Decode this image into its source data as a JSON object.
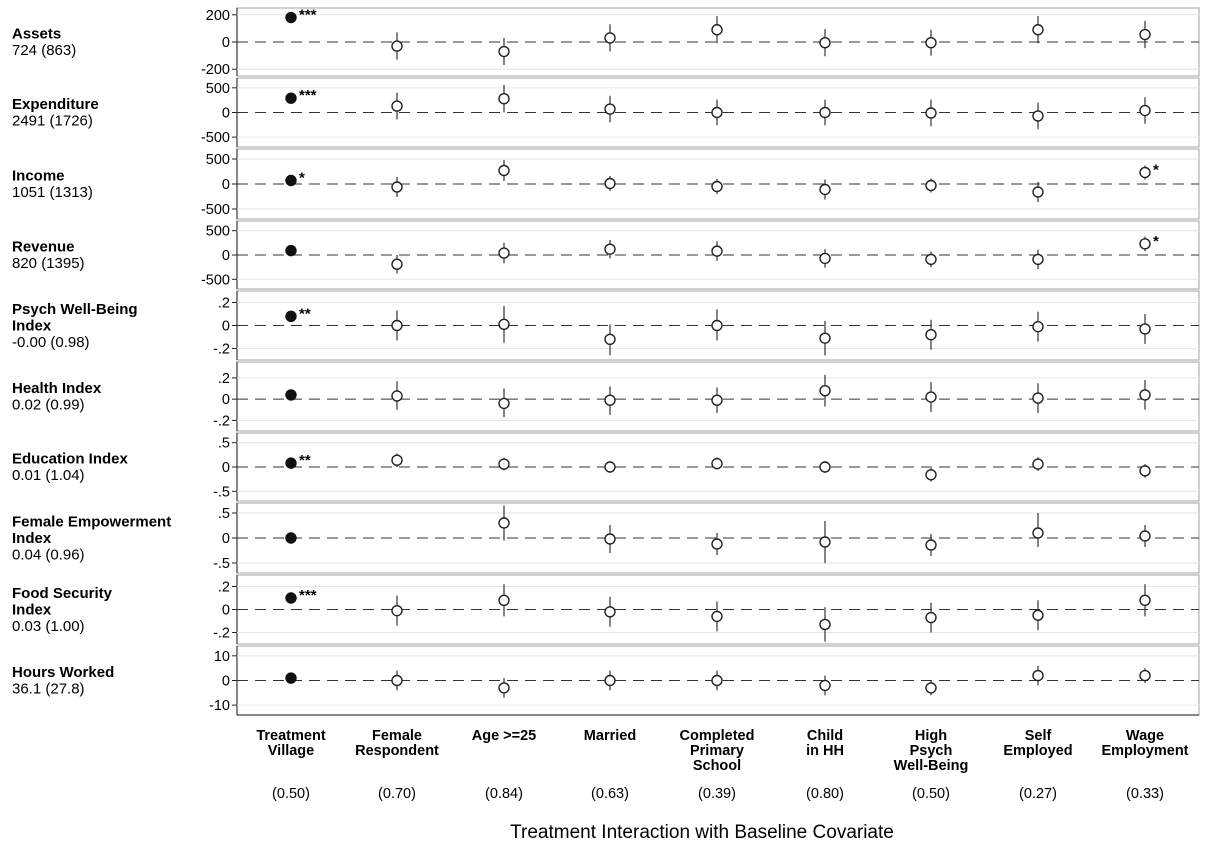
{
  "chart_data": {
    "type": "scatter",
    "xlabel": "Treatment Interaction with Baseline Covariate",
    "columns": [
      {
        "label": [
          "Treatment",
          "Village"
        ],
        "mean": "(0.50)"
      },
      {
        "label": [
          "Female",
          "Respondent"
        ],
        "mean": "(0.70)"
      },
      {
        "label": [
          "Age >=25"
        ],
        "mean": "(0.84)"
      },
      {
        "label": [
          "Married"
        ],
        "mean": "(0.63)"
      },
      {
        "label": [
          "Completed",
          "Primary",
          "School"
        ],
        "mean": "(0.39)"
      },
      {
        "label": [
          "Child",
          "in HH"
        ],
        "mean": "(0.80)"
      },
      {
        "label": [
          "High",
          "Psych",
          "Well-Being"
        ],
        "mean": "(0.50)"
      },
      {
        "label": [
          "Self",
          "Employed"
        ],
        "mean": "(0.27)"
      },
      {
        "label": [
          "Wage",
          "Employment"
        ],
        "mean": "(0.33)"
      }
    ],
    "panels": [
      {
        "name": [
          "Assets"
        ],
        "stat": "724 (863)",
        "ylim": [
          -250,
          250
        ],
        "ticks": [
          200,
          0,
          -200
        ],
        "tick_labels": [
          "200",
          "0",
          "-200"
        ],
        "points": [
          {
            "value": 180,
            "lo": 180,
            "hi": 180,
            "sig": "***"
          },
          {
            "value": -30,
            "lo": -130,
            "hi": 70,
            "sig": ""
          },
          {
            "value": -70,
            "lo": -170,
            "hi": 30,
            "sig": ""
          },
          {
            "value": 30,
            "lo": -70,
            "hi": 130,
            "sig": ""
          },
          {
            "value": 90,
            "lo": -10,
            "hi": 190,
            "sig": ""
          },
          {
            "value": -5,
            "lo": -105,
            "hi": 95,
            "sig": ""
          },
          {
            "value": -5,
            "lo": -100,
            "hi": 90,
            "sig": ""
          },
          {
            "value": 90,
            "lo": -10,
            "hi": 190,
            "sig": ""
          },
          {
            "value": 55,
            "lo": -45,
            "hi": 155,
            "sig": ""
          }
        ]
      },
      {
        "name": [
          "Expenditure"
        ],
        "stat": "2491 (1726)",
        "ylim": [
          -700,
          700
        ],
        "ticks": [
          500,
          0,
          -500
        ],
        "tick_labels": [
          "500",
          "0",
          "-500"
        ],
        "points": [
          {
            "value": 290,
            "lo": 290,
            "hi": 290,
            "sig": "***"
          },
          {
            "value": 130,
            "lo": -140,
            "hi": 400,
            "sig": ""
          },
          {
            "value": 280,
            "lo": 0,
            "hi": 560,
            "sig": ""
          },
          {
            "value": 70,
            "lo": -200,
            "hi": 340,
            "sig": ""
          },
          {
            "value": 0,
            "lo": -260,
            "hi": 260,
            "sig": ""
          },
          {
            "value": 0,
            "lo": -260,
            "hi": 260,
            "sig": ""
          },
          {
            "value": -10,
            "lo": -280,
            "hi": 260,
            "sig": ""
          },
          {
            "value": -70,
            "lo": -340,
            "hi": 200,
            "sig": ""
          },
          {
            "value": 40,
            "lo": -230,
            "hi": 310,
            "sig": ""
          }
        ]
      },
      {
        "name": [
          "Income"
        ],
        "stat": "1051 (1313)",
        "ylim": [
          -700,
          700
        ],
        "ticks": [
          500,
          0,
          -500
        ],
        "tick_labels": [
          "500",
          "0",
          "-500"
        ],
        "points": [
          {
            "value": 70,
            "lo": 70,
            "hi": 70,
            "sig": "*"
          },
          {
            "value": -60,
            "lo": -260,
            "hi": 140,
            "sig": ""
          },
          {
            "value": 270,
            "lo": 60,
            "hi": 480,
            "sig": ""
          },
          {
            "value": 10,
            "lo": -140,
            "hi": 160,
            "sig": ""
          },
          {
            "value": -50,
            "lo": -200,
            "hi": 100,
            "sig": ""
          },
          {
            "value": -110,
            "lo": -310,
            "hi": 90,
            "sig": ""
          },
          {
            "value": -30,
            "lo": -170,
            "hi": 110,
            "sig": ""
          },
          {
            "value": -160,
            "lo": -360,
            "hi": 40,
            "sig": ""
          },
          {
            "value": 230,
            "lo": 90,
            "hi": 370,
            "sig": "*"
          }
        ]
      },
      {
        "name": [
          "Revenue"
        ],
        "stat": "820 (1395)",
        "ylim": [
          -700,
          700
        ],
        "ticks": [
          500,
          0,
          -500
        ],
        "tick_labels": [
          "500",
          "0",
          "-500"
        ],
        "points": [
          {
            "value": 90,
            "lo": 90,
            "hi": 90,
            "sig": ""
          },
          {
            "value": -190,
            "lo": -380,
            "hi": 0,
            "sig": ""
          },
          {
            "value": 40,
            "lo": -170,
            "hi": 250,
            "sig": ""
          },
          {
            "value": 120,
            "lo": -70,
            "hi": 310,
            "sig": ""
          },
          {
            "value": 80,
            "lo": -120,
            "hi": 280,
            "sig": ""
          },
          {
            "value": -70,
            "lo": -260,
            "hi": 120,
            "sig": ""
          },
          {
            "value": -90,
            "lo": -250,
            "hi": 70,
            "sig": ""
          },
          {
            "value": -90,
            "lo": -290,
            "hi": 110,
            "sig": ""
          },
          {
            "value": 230,
            "lo": 80,
            "hi": 380,
            "sig": "*"
          }
        ]
      },
      {
        "name": [
          "Psych Well-Being",
          "Index"
        ],
        "stat": "-0.00 (0.98)",
        "ylim": [
          -0.3,
          0.3
        ],
        "ticks": [
          0.2,
          0,
          -0.2
        ],
        "tick_labels": [
          ".2",
          "0",
          "-.2"
        ],
        "points": [
          {
            "value": 0.08,
            "lo": 0.08,
            "hi": 0.08,
            "sig": "**"
          },
          {
            "value": 0.0,
            "lo": -0.13,
            "hi": 0.13,
            "sig": ""
          },
          {
            "value": 0.01,
            "lo": -0.15,
            "hi": 0.17,
            "sig": ""
          },
          {
            "value": -0.12,
            "lo": -0.26,
            "hi": 0.01,
            "sig": ""
          },
          {
            "value": 0.0,
            "lo": -0.13,
            "hi": 0.14,
            "sig": ""
          },
          {
            "value": -0.11,
            "lo": -0.26,
            "hi": 0.04,
            "sig": ""
          },
          {
            "value": -0.08,
            "lo": -0.21,
            "hi": 0.05,
            "sig": ""
          },
          {
            "value": -0.01,
            "lo": -0.14,
            "hi": 0.12,
            "sig": ""
          },
          {
            "value": -0.03,
            "lo": -0.16,
            "hi": 0.1,
            "sig": ""
          }
        ]
      },
      {
        "name": [
          "Health Index"
        ],
        "stat": "0.02 (0.99)",
        "ylim": [
          -0.3,
          0.35
        ],
        "ticks": [
          0.2,
          0,
          -0.2
        ],
        "tick_labels": [
          ".2",
          "0",
          "-.2"
        ],
        "points": [
          {
            "value": 0.04,
            "lo": 0.04,
            "hi": 0.04,
            "sig": ""
          },
          {
            "value": 0.03,
            "lo": -0.1,
            "hi": 0.17,
            "sig": ""
          },
          {
            "value": -0.04,
            "lo": -0.17,
            "hi": 0.1,
            "sig": ""
          },
          {
            "value": -0.01,
            "lo": -0.15,
            "hi": 0.12,
            "sig": ""
          },
          {
            "value": -0.01,
            "lo": -0.13,
            "hi": 0.11,
            "sig": ""
          },
          {
            "value": 0.08,
            "lo": -0.07,
            "hi": 0.23,
            "sig": ""
          },
          {
            "value": 0.02,
            "lo": -0.12,
            "hi": 0.16,
            "sig": ""
          },
          {
            "value": 0.01,
            "lo": -0.13,
            "hi": 0.15,
            "sig": ""
          },
          {
            "value": 0.04,
            "lo": -0.1,
            "hi": 0.18,
            "sig": ""
          }
        ]
      },
      {
        "name": [
          "Education Index"
        ],
        "stat": "0.01 (1.04)",
        "ylim": [
          -0.7,
          0.7
        ],
        "ticks": [
          0.5,
          0,
          -0.5
        ],
        "tick_labels": [
          ".5",
          "0",
          "-.5"
        ],
        "points": [
          {
            "value": 0.08,
            "lo": 0.08,
            "hi": 0.08,
            "sig": "**"
          },
          {
            "value": 0.14,
            "lo": 0.0,
            "hi": 0.28,
            "sig": ""
          },
          {
            "value": 0.06,
            "lo": -0.07,
            "hi": 0.19,
            "sig": ""
          },
          {
            "value": 0.0,
            "lo": -0.12,
            "hi": 0.12,
            "sig": ""
          },
          {
            "value": 0.07,
            "lo": -0.05,
            "hi": 0.2,
            "sig": ""
          },
          {
            "value": 0.0,
            "lo": -0.12,
            "hi": 0.12,
            "sig": ""
          },
          {
            "value": -0.16,
            "lo": -0.3,
            "hi": -0.02,
            "sig": ""
          },
          {
            "value": 0.06,
            "lo": -0.08,
            "hi": 0.2,
            "sig": ""
          },
          {
            "value": -0.08,
            "lo": -0.22,
            "hi": 0.06,
            "sig": ""
          }
        ]
      },
      {
        "name": [
          "Female Empowerment",
          "Index"
        ],
        "stat": "0.04 (0.96)",
        "ylim": [
          -0.7,
          0.7
        ],
        "ticks": [
          0.5,
          0,
          -0.5
        ],
        "tick_labels": [
          ".5",
          "0",
          "-.5"
        ],
        "points": [
          {
            "value": 0.0,
            "lo": 0.0,
            "hi": 0.0,
            "sig": ""
          },
          null,
          {
            "value": 0.3,
            "lo": -0.05,
            "hi": 0.65,
            "sig": ""
          },
          {
            "value": -0.02,
            "lo": -0.3,
            "hi": 0.26,
            "sig": ""
          },
          {
            "value": -0.12,
            "lo": -0.34,
            "hi": 0.1,
            "sig": ""
          },
          {
            "value": -0.08,
            "lo": -0.5,
            "hi": 0.34,
            "sig": ""
          },
          {
            "value": -0.14,
            "lo": -0.36,
            "hi": 0.08,
            "sig": ""
          },
          {
            "value": 0.1,
            "lo": -0.18,
            "hi": 0.5,
            "sig": ""
          },
          {
            "value": 0.04,
            "lo": -0.18,
            "hi": 0.26,
            "sig": ""
          }
        ]
      },
      {
        "name": [
          "Food Security",
          "Index"
        ],
        "stat": "0.03 (1.00)",
        "ylim": [
          -0.3,
          0.3
        ],
        "ticks": [
          0.2,
          0,
          -0.2
        ],
        "tick_labels": [
          ".2",
          "0",
          "-.2"
        ],
        "points": [
          {
            "value": 0.1,
            "lo": 0.1,
            "hi": 0.1,
            "sig": "***"
          },
          {
            "value": -0.01,
            "lo": -0.14,
            "hi": 0.12,
            "sig": ""
          },
          {
            "value": 0.08,
            "lo": -0.06,
            "hi": 0.22,
            "sig": ""
          },
          {
            "value": -0.02,
            "lo": -0.15,
            "hi": 0.11,
            "sig": ""
          },
          {
            "value": -0.06,
            "lo": -0.19,
            "hi": 0.07,
            "sig": ""
          },
          {
            "value": -0.13,
            "lo": -0.28,
            "hi": 0.02,
            "sig": ""
          },
          {
            "value": -0.07,
            "lo": -0.2,
            "hi": 0.06,
            "sig": ""
          },
          {
            "value": -0.05,
            "lo": -0.18,
            "hi": 0.08,
            "sig": ""
          },
          {
            "value": 0.08,
            "lo": -0.06,
            "hi": 0.22,
            "sig": ""
          }
        ]
      },
      {
        "name": [
          "Hours Worked"
        ],
        "stat": "36.1 (27.8)",
        "ylim": [
          -14,
          14
        ],
        "ticks": [
          10,
          0,
          -10
        ],
        "tick_labels": [
          "10",
          "0",
          "-10"
        ],
        "points": [
          {
            "value": 1,
            "lo": 1,
            "hi": 1,
            "sig": ""
          },
          {
            "value": 0,
            "lo": -4,
            "hi": 4,
            "sig": ""
          },
          {
            "value": -3,
            "lo": -7,
            "hi": 1,
            "sig": ""
          },
          {
            "value": 0,
            "lo": -4,
            "hi": 4,
            "sig": ""
          },
          {
            "value": 0,
            "lo": -4,
            "hi": 4,
            "sig": ""
          },
          {
            "value": -2,
            "lo": -6,
            "hi": 2,
            "sig": ""
          },
          {
            "value": -3,
            "lo": -6,
            "hi": 0,
            "sig": ""
          },
          {
            "value": 2,
            "lo": -2,
            "hi": 6,
            "sig": ""
          },
          {
            "value": 2,
            "lo": -1,
            "hi": 5,
            "sig": ""
          }
        ]
      }
    ]
  }
}
